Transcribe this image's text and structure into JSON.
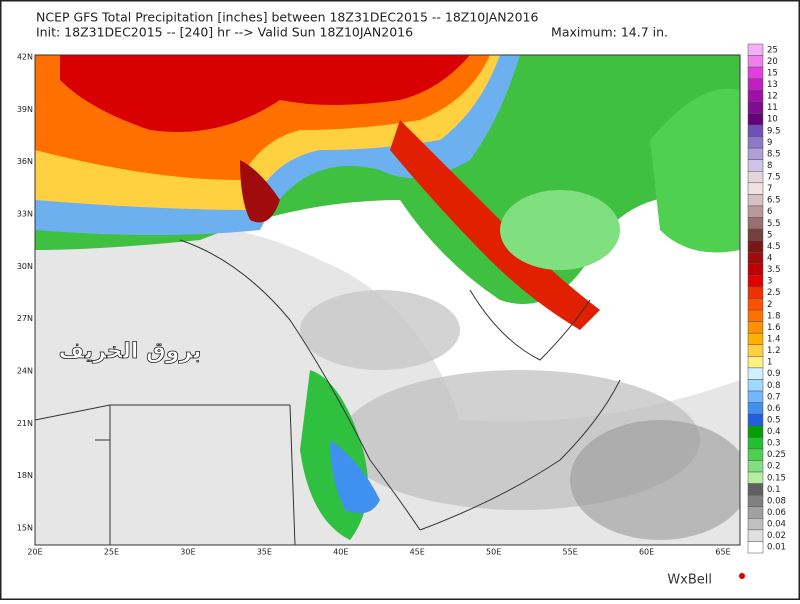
{
  "header": {
    "title": "NCEP GFS Total Precipitation [inches] between 18Z31DEC2015 -- 18Z10JAN2016",
    "init": "Init: 18Z31DEC2015 -- [240] hr --> Valid Sun 18Z10JAN2016",
    "maximum": "Maximum: 14.7 in."
  },
  "map": {
    "lat_labels": [
      "42N",
      "39N",
      "36N",
      "33N",
      "30N",
      "27N",
      "24N",
      "21N",
      "18N",
      "15N"
    ],
    "lon_labels": [
      "20E",
      "25E",
      "30E",
      "35E",
      "40E",
      "45E",
      "50E",
      "55E",
      "60E",
      "65E"
    ],
    "watermark": "بروق الخريف"
  },
  "colorbar": {
    "levels": [
      {
        "label": "25",
        "color": "#f4b0f4"
      },
      {
        "label": "20",
        "color": "#ee80ee"
      },
      {
        "label": "15",
        "color": "#e040e0"
      },
      {
        "label": "13",
        "color": "#c020c0"
      },
      {
        "label": "12",
        "color": "#a010a8"
      },
      {
        "label": "11",
        "color": "#800c90"
      },
      {
        "label": "10",
        "color": "#640078"
      },
      {
        "label": "9.5",
        "color": "#7050b8"
      },
      {
        "label": "9",
        "color": "#9078c8"
      },
      {
        "label": "8.5",
        "color": "#b0a0d8"
      },
      {
        "label": "8",
        "color": "#d0c4e4"
      },
      {
        "label": "7.5",
        "color": "#e4d4dc"
      },
      {
        "label": "7",
        "color": "#f0e2e2"
      },
      {
        "label": "6.5",
        "color": "#d8c0c0"
      },
      {
        "label": "6",
        "color": "#b89898"
      },
      {
        "label": "5.5",
        "color": "#987070"
      },
      {
        "label": "5",
        "color": "#744040"
      },
      {
        "label": "4.5",
        "color": "#7a1818"
      },
      {
        "label": "4",
        "color": "#a00c0c"
      },
      {
        "label": "3.5",
        "color": "#c00000"
      },
      {
        "label": "3",
        "color": "#e00000"
      },
      {
        "label": "2.5",
        "color": "#f03000"
      },
      {
        "label": "2",
        "color": "#ff5000"
      },
      {
        "label": "1.8",
        "color": "#ff7000"
      },
      {
        "label": "1.6",
        "color": "#ff9000"
      },
      {
        "label": "1.4",
        "color": "#ffb000"
      },
      {
        "label": "1.2",
        "color": "#ffd040"
      },
      {
        "label": "1",
        "color": "#fff080"
      },
      {
        "label": "0.9",
        "color": "#d0f0ff"
      },
      {
        "label": "0.8",
        "color": "#a0d8ff"
      },
      {
        "label": "0.7",
        "color": "#70b8ff"
      },
      {
        "label": "0.6",
        "color": "#4090f0"
      },
      {
        "label": "0.5",
        "color": "#2060e0"
      },
      {
        "label": "0.4",
        "color": "#00a000"
      },
      {
        "label": "0.3",
        "color": "#20c030"
      },
      {
        "label": "0.25",
        "color": "#50d050"
      },
      {
        "label": "0.2",
        "color": "#80e080"
      },
      {
        "label": "0.15",
        "color": "#b0f0a0"
      },
      {
        "label": "0.1",
        "color": "#606060"
      },
      {
        "label": "0.08",
        "color": "#808080"
      },
      {
        "label": "0.06",
        "color": "#a0a0a0"
      },
      {
        "label": "0.04",
        "color": "#c0c0c0"
      },
      {
        "label": "0.02",
        "color": "#e0e0e0"
      },
      {
        "label": "0.01",
        "color": "#ffffff"
      }
    ]
  },
  "logo": "WxBell"
}
